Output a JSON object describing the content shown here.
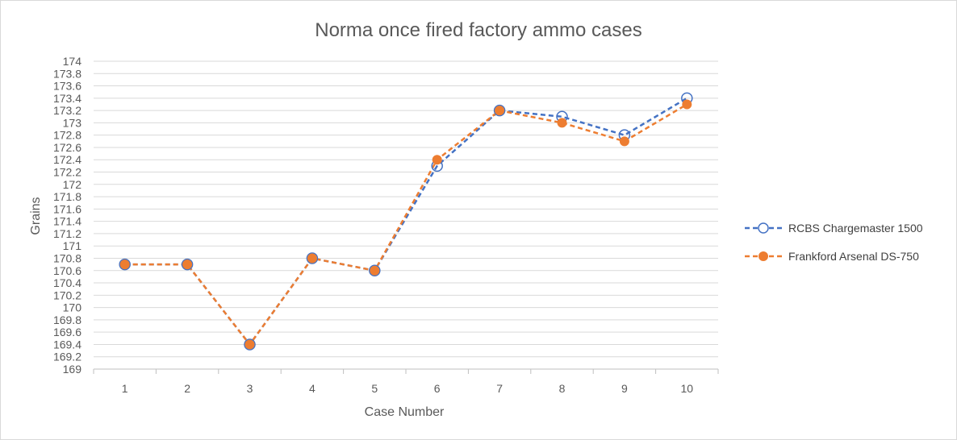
{
  "chart_data": {
    "type": "line",
    "title": "Norma once fired factory ammo cases",
    "xlabel": "Case Number",
    "ylabel": "Grains",
    "categories": [
      "1",
      "2",
      "3",
      "4",
      "5",
      "6",
      "7",
      "8",
      "9",
      "10"
    ],
    "ylim": [
      169,
      174
    ],
    "ytick_step": 0.2,
    "grid": true,
    "legend_position": "right",
    "series": [
      {
        "name": "RCBS Chargemaster 1500",
        "color": "#4472C4",
        "marker": "open-circle",
        "line": "dashed",
        "values": [
          170.7,
          170.7,
          169.4,
          170.8,
          170.6,
          172.3,
          173.2,
          173.1,
          172.8,
          173.4
        ]
      },
      {
        "name": "Frankford Arsenal DS-750",
        "color": "#ED7D31",
        "marker": "filled-circle",
        "line": "dashed",
        "values": [
          170.7,
          170.7,
          169.4,
          170.8,
          170.6,
          172.4,
          173.2,
          173.0,
          172.7,
          173.3
        ]
      }
    ]
  }
}
